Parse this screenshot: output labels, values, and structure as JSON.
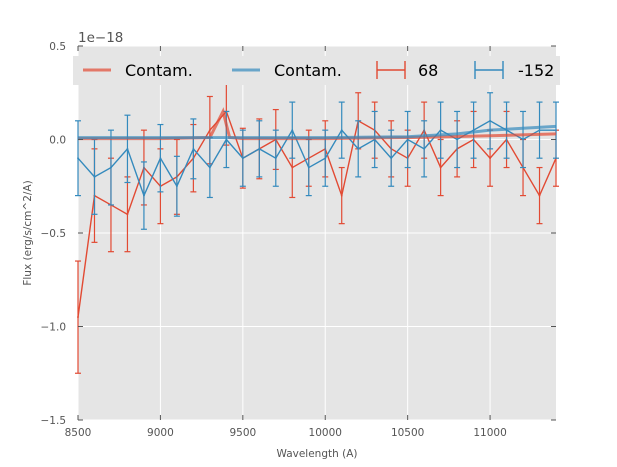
{
  "chart_data": {
    "type": "line",
    "title": "",
    "xlabel": "Wavelength (A)",
    "ylabel": "Flux (erg/s/cm^2/A)",
    "offset_label": "1e−18",
    "xlim": [
      8500,
      11400
    ],
    "ylim": [
      -1.5,
      0.5
    ],
    "grid": true,
    "legend_location": "top",
    "x_ticks": [
      8500,
      9000,
      9500,
      10000,
      10500,
      11000
    ],
    "x_tick_labels": [
      "8500",
      "9000",
      "9500",
      "10000",
      "10500",
      "11000"
    ],
    "y_ticks": [
      -1.5,
      -1.0,
      -0.5,
      0.0,
      0.5
    ],
    "y_tick_labels": [
      "−1.5",
      "−1.0",
      "−0.5",
      "0.0",
      "0.5"
    ],
    "series": [
      {
        "name": "Contam.",
        "kind": "line",
        "color": "#E24A33",
        "x": [
          8500,
          9000,
          9300,
          9380,
          9420,
          9500,
          10000,
          10500,
          11000,
          11400
        ],
        "y": [
          0.005,
          0.005,
          0.01,
          0.15,
          0.01,
          0.005,
          0.005,
          0.01,
          0.02,
          0.03
        ]
      },
      {
        "name": "Contam.",
        "kind": "line",
        "color": "#348ABD",
        "x": [
          8500,
          9000,
          9500,
          10000,
          10500,
          10800,
          11000,
          11200,
          11400
        ],
        "y": [
          0.01,
          0.01,
          0.01,
          0.01,
          0.015,
          0.03,
          0.05,
          0.06,
          0.07
        ]
      },
      {
        "name": "68",
        "kind": "errorbar",
        "color": "#E24A33",
        "x": [
          8500,
          8600,
          8700,
          8800,
          8900,
          9000,
          9100,
          9200,
          9300,
          9400,
          9500,
          9600,
          9700,
          9800,
          9900,
          10000,
          10100,
          10200,
          10300,
          10400,
          10500,
          10600,
          10700,
          10800,
          10900,
          11000,
          11100,
          11200,
          11300,
          11400
        ],
        "y": [
          -0.95,
          -0.3,
          -0.35,
          -0.4,
          -0.15,
          -0.25,
          -0.2,
          -0.1,
          0.05,
          0.15,
          -0.1,
          -0.05,
          0.0,
          -0.15,
          -0.1,
          -0.05,
          -0.3,
          0.1,
          0.05,
          -0.05,
          -0.1,
          0.05,
          -0.15,
          -0.05,
          0.0,
          -0.1,
          0.0,
          -0.15,
          -0.3,
          -0.1
        ],
        "yerr": [
          0.3,
          0.25,
          0.25,
          0.2,
          0.2,
          0.2,
          0.2,
          0.18,
          0.18,
          0.18,
          0.16,
          0.16,
          0.16,
          0.16,
          0.15,
          0.15,
          0.15,
          0.15,
          0.15,
          0.15,
          0.15,
          0.15,
          0.15,
          0.15,
          0.15,
          0.15,
          0.15,
          0.15,
          0.15,
          0.15
        ]
      },
      {
        "name": "-152",
        "kind": "errorbar",
        "color": "#348ABD",
        "x": [
          8500,
          8600,
          8700,
          8800,
          8900,
          9000,
          9100,
          9200,
          9300,
          9400,
          9500,
          9600,
          9700,
          9800,
          9900,
          10000,
          10100,
          10200,
          10300,
          10400,
          10500,
          10600,
          10700,
          10800,
          10900,
          11000,
          11100,
          11200,
          11300,
          11400
        ],
        "y": [
          -0.1,
          -0.2,
          -0.15,
          -0.05,
          -0.3,
          -0.1,
          -0.25,
          -0.05,
          -0.15,
          0.0,
          -0.1,
          -0.05,
          -0.1,
          0.05,
          -0.15,
          -0.1,
          0.05,
          -0.05,
          0.0,
          -0.1,
          0.0,
          -0.05,
          0.05,
          0.0,
          0.05,
          0.1,
          0.05,
          0.0,
          0.05,
          0.05
        ],
        "yerr": [
          0.2,
          0.2,
          0.2,
          0.18,
          0.18,
          0.18,
          0.16,
          0.16,
          0.16,
          0.15,
          0.15,
          0.15,
          0.15,
          0.15,
          0.15,
          0.15,
          0.15,
          0.15,
          0.15,
          0.15,
          0.15,
          0.15,
          0.15,
          0.15,
          0.15,
          0.15,
          0.15,
          0.15,
          0.15,
          0.15
        ]
      }
    ]
  },
  "colors": {
    "plot_background": "#E5E5E5",
    "grid": "#FFFFFF",
    "red": "#E24A33",
    "blue": "#348ABD"
  }
}
